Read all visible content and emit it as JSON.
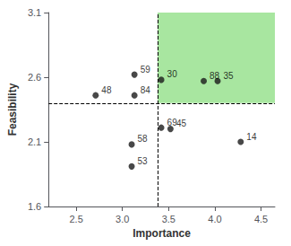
{
  "chart_data": {
    "type": "scatter",
    "x": [
      3.13,
      2.71,
      3.13,
      3.1,
      3.1,
      3.42,
      3.88,
      4.03,
      3.42,
      3.52,
      4.28
    ],
    "values": [
      2.62,
      2.46,
      2.46,
      2.08,
      1.91,
      2.58,
      2.57,
      2.57,
      2.21,
      2.2,
      2.1
    ],
    "labels": [
      "59",
      "48",
      "84",
      "58",
      "53",
      "30",
      "88",
      "35",
      "69",
      "45",
      "14"
    ],
    "color": "#1a1a1a",
    "marker": "circle",
    "xlabel": "Importance",
    "ylabel": "Feasibility",
    "xlim": [
      2.2,
      4.65
    ],
    "ylim": [
      1.6,
      3.1
    ],
    "xticks": [
      2.5,
      {
        "value": 3.0,
        "label": "3.0"
      },
      3.5,
      {
        "value": 4.0,
        "label": "4.0"
      },
      4.5
    ],
    "yticks": [
      1.6,
      2.1,
      2.6,
      3.1
    ],
    "grid": false,
    "quadrant": {
      "x": 3.38,
      "y": 2.4,
      "color": "#a8e6a0",
      "line_style": "dashed"
    }
  }
}
